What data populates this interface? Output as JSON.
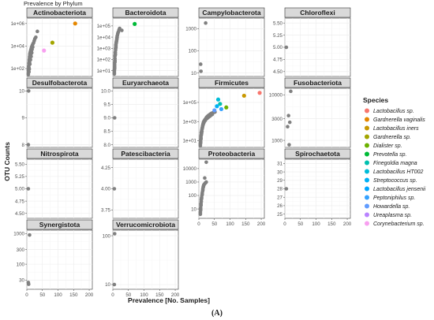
{
  "figure": {
    "title": "Prevalence by Phylum",
    "caption": "(A)"
  },
  "chart_data": {
    "type": "scatter",
    "title": "Prevalence by Phylum",
    "xlabel": "Prevalence [No. Samples]",
    "ylabel": "OTU Counts",
    "xlim": [
      0,
      210
    ],
    "xticks": [
      0,
      50,
      100,
      150,
      200
    ],
    "grid": true,
    "default_point_color": "#808080",
    "legend": {
      "title": "Species",
      "position": "right",
      "items": [
        {
          "label": "Lactobacillus sp.",
          "color": "#F8766D"
        },
        {
          "label": "Gardnerella vaginalis",
          "color": "#E58700"
        },
        {
          "label": "Lactobacillus iners",
          "color": "#C99800"
        },
        {
          "label": "Gardnerella sp.",
          "color": "#A3A500"
        },
        {
          "label": "Dialister sp.",
          "color": "#6BB100"
        },
        {
          "label": "Prevotella sp.",
          "color": "#00BA38"
        },
        {
          "label": "Finegoldia magna",
          "color": "#00C0AF"
        },
        {
          "label": "Lactobacillus HT002",
          "color": "#00BCD8"
        },
        {
          "label": "Streptococcus sp.",
          "color": "#00B0F6"
        },
        {
          "label": "Lactobacillus jensenii",
          "color": "#00A5FF"
        },
        {
          "label": "Peptoniphilus sp.",
          "color": "#35A2FF"
        },
        {
          "label": "Howardella sp.",
          "color": "#619CFF"
        },
        {
          "label": "Ureaplasma sp.",
          "color": "#B983FF"
        },
        {
          "label": "Corynebacterium sp.",
          "color": "#F8A0F0"
        }
      ]
    },
    "panels": [
      {
        "name": "Actinobacteriota",
        "scale": "log",
        "ylim": [
          20,
          3000000
        ],
        "yticks": [
          100,
          10000,
          1000000
        ],
        "yticklabels": [
          "1e+02",
          "1e+04",
          "1e+06"
        ],
        "points": [
          [
            1,
            40
          ],
          [
            1,
            70
          ],
          [
            2,
            100
          ],
          [
            2,
            150
          ],
          [
            3,
            200
          ],
          [
            3,
            300
          ],
          [
            4,
            450
          ],
          [
            4,
            600
          ],
          [
            5,
            800
          ],
          [
            5,
            1100
          ],
          [
            6,
            1500
          ],
          [
            6,
            2000
          ],
          [
            7,
            2600
          ],
          [
            8,
            3300
          ],
          [
            9,
            4200
          ],
          [
            10,
            5500
          ],
          [
            11,
            7000
          ],
          [
            12,
            9000
          ],
          [
            14,
            12000
          ],
          [
            16,
            16000
          ],
          [
            2,
            60
          ],
          [
            3,
            120
          ],
          [
            5,
            350
          ],
          [
            7,
            900
          ],
          [
            9,
            1800
          ],
          [
            11,
            3000
          ],
          [
            13,
            5000
          ],
          [
            15,
            8000
          ],
          [
            18,
            20000
          ],
          [
            20,
            30000
          ],
          [
            22,
            45000
          ],
          [
            25,
            60000
          ],
          [
            30,
            200000
          ],
          [
            8,
            600
          ],
          [
            10,
            1200
          ],
          [
            12,
            2500
          ],
          [
            3,
            50
          ],
          [
            4,
            90
          ],
          [
            6,
            250
          ],
          [
            1,
            30
          ]
        ],
        "highlights": [
          {
            "x": 155,
            "y": 1000000,
            "color": "#E58700"
          },
          {
            "x": 82,
            "y": 20000,
            "color": "#A3A500"
          },
          {
            "x": 55,
            "y": 4000,
            "color": "#F8A0F0"
          }
        ]
      },
      {
        "name": "Bacteroidota",
        "scale": "log",
        "ylim": [
          3,
          500000
        ],
        "yticks": [
          10,
          100,
          1000,
          10000,
          100000
        ],
        "yticklabels": [
          "1e+01",
          "1e+02",
          "1e+03",
          "1e+04",
          "1e+05"
        ],
        "points": [
          [
            1,
            5
          ],
          [
            1,
            8
          ],
          [
            1,
            12
          ],
          [
            2,
            20
          ],
          [
            2,
            35
          ],
          [
            2,
            50
          ],
          [
            3,
            80
          ],
          [
            3,
            120
          ],
          [
            3,
            200
          ],
          [
            4,
            300
          ],
          [
            4,
            450
          ],
          [
            5,
            700
          ],
          [
            5,
            1000
          ],
          [
            6,
            1500
          ],
          [
            6,
            2200
          ],
          [
            7,
            3500
          ],
          [
            8,
            5000
          ],
          [
            9,
            8000
          ],
          [
            10,
            12000
          ],
          [
            12,
            20000
          ],
          [
            14,
            30000
          ],
          [
            16,
            45000
          ],
          [
            1,
            6
          ],
          [
            2,
            15
          ],
          [
            3,
            60
          ],
          [
            4,
            250
          ],
          [
            5,
            900
          ],
          [
            6,
            1800
          ],
          [
            7,
            2800
          ],
          [
            8,
            4000
          ],
          [
            9,
            6000
          ],
          [
            10,
            9000
          ],
          [
            11,
            15000
          ],
          [
            13,
            25000
          ],
          [
            18,
            60000
          ],
          [
            25,
            40000
          ],
          [
            2,
            25
          ],
          [
            4,
            400
          ],
          [
            6,
            1200
          ],
          [
            1,
            10
          ]
        ],
        "highlights": [
          {
            "x": 70,
            "y": 150000,
            "color": "#00BA38"
          }
        ]
      },
      {
        "name": "Campylobacterota",
        "scale": "log",
        "ylim": [
          7,
          3000
        ],
        "yticks": [
          10,
          100,
          1000
        ],
        "yticklabels": [
          "10",
          "100",
          "1000"
        ],
        "points": [
          [
            18,
            1800
          ],
          [
            2,
            25
          ],
          [
            3,
            12
          ]
        ],
        "highlights": []
      },
      {
        "name": "Chloroflexi",
        "scale": "linear",
        "ylim": [
          4.4,
          5.6
        ],
        "yticks": [
          4.5,
          4.75,
          5.0,
          5.25,
          5.5
        ],
        "yticklabels": [
          "4.50",
          "4.75",
          "5.00",
          "5.25",
          "5.50"
        ],
        "points": [
          [
            1,
            5.0
          ]
        ],
        "highlights": []
      },
      {
        "name": "Desulfobacterota",
        "scale": "linear",
        "ylim": [
          7.9,
          10.1
        ],
        "yticks": [
          8,
          9,
          10
        ],
        "yticklabels": [
          "8",
          "9",
          "10"
        ],
        "points": [
          [
            2,
            10
          ],
          [
            1,
            8
          ]
        ],
        "highlights": []
      },
      {
        "name": "Euryarchaeota",
        "scale": "linear",
        "ylim": [
          7.9,
          10.1
        ],
        "yticks": [
          8.0,
          8.5,
          9.0,
          9.5,
          10.0
        ],
        "yticklabels": [
          "8.0",
          "8.5",
          "9.0",
          "9.5",
          "10.0"
        ],
        "points": [
          [
            2,
            9.0
          ]
        ],
        "highlights": []
      },
      {
        "name": "Firmicutes",
        "scale": "log",
        "ylim": [
          2,
          3000000
        ],
        "yticks": [
          10,
          1000,
          100000
        ],
        "yticklabels": [
          "1e+01",
          "1e+03",
          "1e+05"
        ],
        "points": [
          [
            1,
            3
          ],
          [
            1,
            5
          ],
          [
            2,
            8
          ],
          [
            2,
            12
          ],
          [
            3,
            20
          ],
          [
            3,
            30
          ],
          [
            4,
            45
          ],
          [
            4,
            70
          ],
          [
            5,
            100
          ],
          [
            6,
            150
          ],
          [
            7,
            220
          ],
          [
            8,
            320
          ],
          [
            9,
            450
          ],
          [
            10,
            600
          ],
          [
            11,
            800
          ],
          [
            12,
            1000
          ],
          [
            14,
            1300
          ],
          [
            16,
            1600
          ],
          [
            18,
            2000
          ],
          [
            20,
            2500
          ],
          [
            22,
            3000
          ],
          [
            24,
            3500
          ],
          [
            26,
            4000
          ],
          [
            28,
            4500
          ],
          [
            30,
            5000
          ],
          [
            33,
            6000
          ],
          [
            36,
            7000
          ],
          [
            40,
            8000
          ],
          [
            44,
            9000
          ],
          [
            48,
            10000
          ],
          [
            2,
            6
          ],
          [
            3,
            15
          ],
          [
            5,
            60
          ],
          [
            7,
            180
          ],
          [
            9,
            380
          ],
          [
            12,
            700
          ],
          [
            15,
            1100
          ],
          [
            19,
            1700
          ],
          [
            23,
            2200
          ],
          [
            27,
            2800
          ],
          [
            31,
            3500
          ],
          [
            35,
            4500
          ],
          [
            39,
            5500
          ],
          [
            1,
            4
          ],
          [
            4,
            40
          ],
          [
            6,
            90
          ],
          [
            8,
            250
          ],
          [
            10,
            500
          ],
          [
            13,
            900
          ],
          [
            17,
            1400
          ]
        ],
        "highlights": [
          {
            "x": 195,
            "y": 1000000,
            "color": "#F8766D"
          },
          {
            "x": 145,
            "y": 500000,
            "color": "#C99800"
          },
          {
            "x": 88,
            "y": 30000,
            "color": "#6BB100"
          },
          {
            "x": 62,
            "y": 200000,
            "color": "#00BCD8"
          },
          {
            "x": 68,
            "y": 70000,
            "color": "#00C0AF"
          },
          {
            "x": 58,
            "y": 40000,
            "color": "#00B0F6"
          },
          {
            "x": 72,
            "y": 20000,
            "color": "#35A2FF"
          },
          {
            "x": 50,
            "y": 15000,
            "color": "#619CFF"
          }
        ]
      },
      {
        "name": "Fusobacteriota",
        "scale": "log",
        "ylim": [
          700,
          14000
        ],
        "yticks": [
          1000,
          3000,
          10000
        ],
        "yticklabels": [
          "1000",
          "3000",
          "10000"
        ],
        "points": [
          [
            15,
            12000
          ],
          [
            8,
            3500
          ],
          [
            12,
            2500
          ],
          [
            5,
            2000
          ],
          [
            10,
            800
          ]
        ],
        "highlights": []
      },
      {
        "name": "Nitrospirota",
        "scale": "linear",
        "ylim": [
          4.4,
          5.6
        ],
        "yticks": [
          4.5,
          4.75,
          5.0,
          5.25,
          5.5
        ],
        "yticklabels": [
          "4.50",
          "4.75",
          "5.00",
          "5.25",
          "5.50"
        ],
        "points": [
          [
            1,
            5.0
          ]
        ],
        "highlights": []
      },
      {
        "name": "Patescibacteria",
        "scale": "linear",
        "ylim": [
          3.65,
          4.35
        ],
        "yticks": [
          3.75,
          4.0,
          4.25
        ],
        "yticklabels": [
          "3.75",
          "4.00",
          "4.25"
        ],
        "points": [
          [
            1,
            4.0
          ]
        ],
        "highlights": []
      },
      {
        "name": "Proteobacteria",
        "scale": "log",
        "ylim": [
          2,
          50000
        ],
        "yticks": [
          10,
          100,
          1000,
          10000
        ],
        "yticklabels": [
          "10",
          "100",
          "1000",
          "10000"
        ],
        "points": [
          [
            1,
            4
          ],
          [
            1,
            6
          ],
          [
            2,
            8
          ],
          [
            2,
            12
          ],
          [
            3,
            18
          ],
          [
            3,
            25
          ],
          [
            4,
            35
          ],
          [
            4,
            50
          ],
          [
            5,
            70
          ],
          [
            6,
            100
          ],
          [
            7,
            150
          ],
          [
            8,
            200
          ],
          [
            9,
            300
          ],
          [
            10,
            400
          ],
          [
            11,
            500
          ],
          [
            12,
            600
          ],
          [
            14,
            700
          ],
          [
            16,
            800
          ],
          [
            18,
            900
          ],
          [
            20,
            1000
          ],
          [
            20,
            30000
          ],
          [
            15,
            2000
          ],
          [
            2,
            10
          ],
          [
            3,
            20
          ],
          [
            5,
            60
          ],
          [
            7,
            120
          ],
          [
            9,
            250
          ],
          [
            11,
            450
          ],
          [
            13,
            650
          ],
          [
            1,
            5
          ]
        ],
        "highlights": []
      },
      {
        "name": "Spirochaetota",
        "scale": "linear",
        "ylim": [
          24.5,
          31.5
        ],
        "yticks": [
          25,
          26,
          27,
          28,
          29,
          30,
          31
        ],
        "yticklabels": [
          "25",
          "26",
          "27",
          "28",
          "29",
          "30",
          "31"
        ],
        "points": [
          [
            1,
            28
          ]
        ],
        "highlights": []
      },
      {
        "name": "Synergistota",
        "scale": "log",
        "ylim": [
          15,
          1300
        ],
        "yticks": [
          30,
          100,
          300,
          1000
        ],
        "yticklabels": [
          "30",
          "100",
          "300",
          "1000"
        ],
        "points": [
          [
            5,
            900
          ],
          [
            1,
            25
          ],
          [
            2,
            22
          ]
        ],
        "highlights": []
      },
      {
        "name": "Verrucomicrobiota",
        "scale": "log",
        "ylim": [
          8,
          130
        ],
        "yticks": [
          10,
          100
        ],
        "yticklabels": [
          "10",
          "100"
        ],
        "points": [
          [
            2,
            110
          ],
          [
            1,
            10
          ]
        ],
        "highlights": []
      }
    ]
  }
}
